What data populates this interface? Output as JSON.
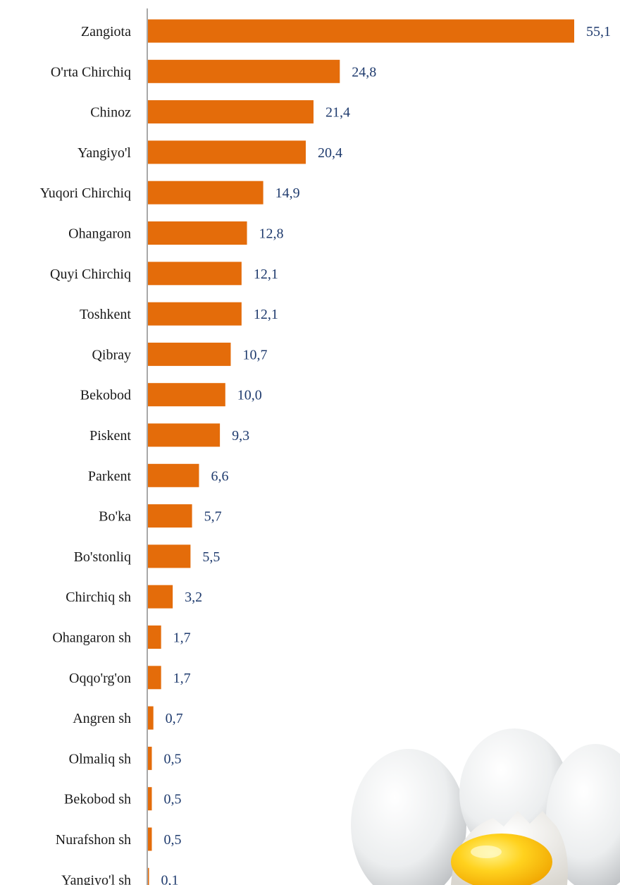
{
  "chart_data": {
    "type": "bar",
    "orientation": "horizontal",
    "categories": [
      "Zangiota",
      "O'rta Chirchiq",
      "Chinoz",
      "Yangiyo'l",
      "Yuqori Chirchiq",
      "Ohangaron",
      "Quyi Chirchiq",
      "Toshkent",
      "Qibray",
      "Bekobod",
      "Piskent",
      "Parkent",
      "Bo'ka",
      "Bo'stonliq",
      "Chirchiq sh",
      "Ohangaron sh",
      "Oqqo'rg'on",
      "Angren sh",
      "Olmaliq sh",
      "Bekobod sh",
      "Nurafshon sh",
      "Yangiyo'l sh"
    ],
    "values": [
      55.1,
      24.8,
      21.4,
      20.4,
      14.9,
      12.8,
      12.1,
      12.1,
      10.7,
      10.0,
      9.3,
      6.6,
      5.7,
      5.5,
      3.2,
      1.7,
      1.7,
      0.7,
      0.5,
      0.5,
      0.5,
      0.1
    ],
    "value_labels": [
      "55,1",
      "24,8",
      "21,4",
      "20,4",
      "14,9",
      "12,8",
      "12,1",
      "12,1",
      "10,7",
      "10,0",
      "9,3",
      "6,6",
      "5,7",
      "5,5",
      "3,2",
      "1,7",
      "1,7",
      "0,7",
      "0,5",
      "0,5",
      "0,5",
      "0,1"
    ],
    "title": "",
    "xlabel": "",
    "ylabel": "",
    "xlim": [
      0,
      55.1
    ],
    "grid": false,
    "legend": "none",
    "bar_color": "#e46c0a",
    "value_label_color": "#1f3b6e",
    "category_label_color": "#1a1a1a",
    "axis_color": "#8c8c8c"
  },
  "decoration": {
    "image": "eggs-photo"
  }
}
